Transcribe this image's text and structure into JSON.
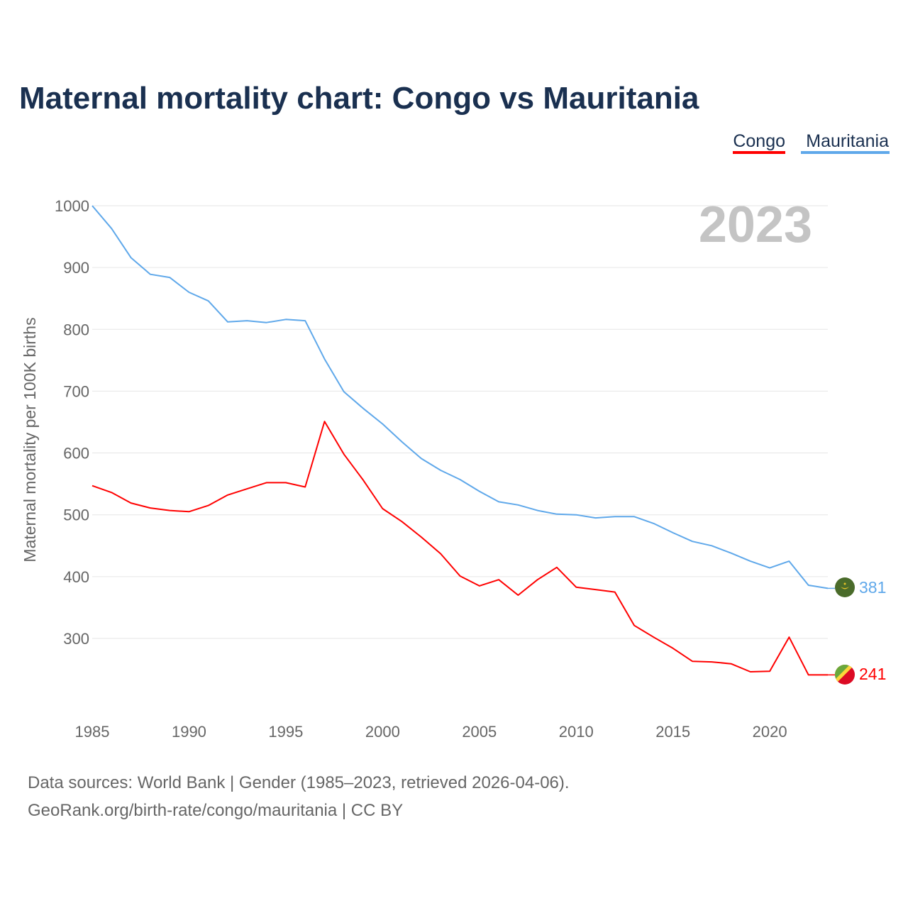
{
  "chart_data": {
    "type": "line",
    "title": "Maternal mortality chart: Congo vs Mauritania",
    "ylabel": "Maternal mortality per 100K births",
    "xlabel": "",
    "year_label": "2023",
    "xlim": [
      1985,
      2023
    ],
    "ylim": [
      200,
      1000
    ],
    "xticks": [
      1985,
      1990,
      1995,
      2000,
      2005,
      2010,
      2015,
      2020
    ],
    "yticks": [
      300,
      400,
      500,
      600,
      700,
      800,
      900,
      1000
    ],
    "grid": true,
    "legend_position": "top-right",
    "x": [
      1985,
      1986,
      1987,
      1988,
      1989,
      1990,
      1991,
      1992,
      1993,
      1994,
      1995,
      1996,
      1997,
      1998,
      1999,
      2000,
      2001,
      2002,
      2003,
      2004,
      2005,
      2006,
      2007,
      2008,
      2009,
      2010,
      2011,
      2012,
      2013,
      2014,
      2015,
      2016,
      2017,
      2018,
      2019,
      2020,
      2021,
      2022,
      2023
    ],
    "series": [
      {
        "name": "Congo",
        "color": "#ff0000",
        "end_label": "241",
        "values": [
          547,
          536,
          519,
          511,
          507,
          505,
          515,
          532,
          542,
          552,
          552,
          545,
          651,
          598,
          556,
          510,
          489,
          464,
          437,
          401,
          385,
          395,
          370,
          395,
          415,
          383,
          379,
          375,
          321,
          302,
          284,
          263,
          262,
          259,
          246,
          247,
          302,
          241,
          241
        ]
      },
      {
        "name": "Mauritania",
        "color": "#5fa8ea",
        "end_label": "381",
        "values": [
          1000,
          963,
          916,
          889,
          884,
          860,
          846,
          812,
          814,
          811,
          816,
          814,
          752,
          699,
          672,
          647,
          618,
          591,
          572,
          557,
          538,
          521,
          516,
          507,
          501,
          500,
          495,
          497,
          497,
          486,
          471,
          457,
          450,
          438,
          425,
          414,
          425,
          386,
          381
        ]
      }
    ]
  },
  "footer": {
    "line1": "Data sources: World Bank | Gender (1985–2023, retrieved 2026-04-06).",
    "line2": "GeoRank.org/birth-rate/congo/mauritania | CC BY"
  }
}
